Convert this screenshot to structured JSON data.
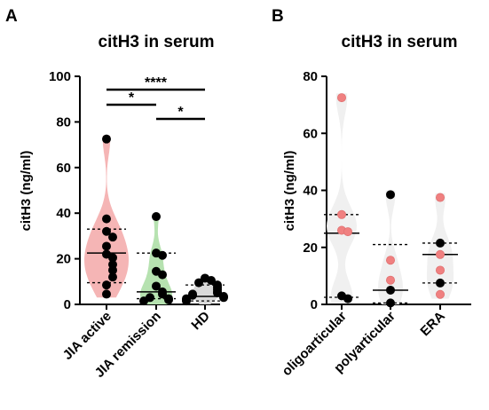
{
  "chart_data": [
    {
      "panel": "A",
      "type": "violin",
      "title": "citH3 in serum",
      "ylabel": "citH3 (ng/ml)",
      "ylim": [
        0,
        100
      ],
      "yticks": [
        0,
        20,
        40,
        60,
        80,
        100
      ],
      "categories": [
        "JIA active",
        "JIA remission",
        "HD"
      ],
      "colors": {
        "JIA active": "#f5b5b5",
        "JIA remission": "#b6e2b0",
        "HD": "#d9d9d9",
        "points": "#000000"
      },
      "series": [
        {
          "category": "JIA active",
          "median": 22.5,
          "q1": 9.5,
          "q3": 33,
          "points": [
            72.5,
            37.5,
            32,
            29.5,
            25.5,
            22,
            20.5,
            17.5,
            15,
            12,
            8.5,
            4.5
          ]
        },
        {
          "category": "JIA remission",
          "median": 5.5,
          "q1": 2.5,
          "q3": 22.5,
          "points": [
            38.5,
            22.5,
            21.5,
            14.5,
            13,
            8,
            5.5,
            4.5,
            3,
            2.5,
            2,
            1.5
          ]
        },
        {
          "category": "HD",
          "median": 3.5,
          "q1": 1.5,
          "q3": 8.5,
          "points": [
            11.5,
            10.5,
            9.5,
            8.5,
            7.5,
            6.5,
            5.5,
            5,
            4.5,
            4,
            3.5,
            3,
            2.5,
            2,
            1.5
          ]
        }
      ],
      "significance": [
        {
          "from": "JIA active",
          "to": "HD",
          "label": "****"
        },
        {
          "from": "JIA active",
          "to": "JIA remission",
          "label": "*"
        },
        {
          "from": "JIA remission",
          "to": "HD",
          "label": "*"
        }
      ]
    },
    {
      "panel": "B",
      "type": "violin",
      "title": "citH3 in serum",
      "ylabel": "citH3 (ng/ml)",
      "ylim": [
        0,
        80
      ],
      "yticks": [
        0,
        20,
        40,
        60,
        80
      ],
      "categories": [
        "oligoarticular",
        "polyarticular",
        "ERA"
      ],
      "colors": {
        "violin": "#f0f0f0",
        "active_points": "#f08080",
        "remission_points": "#000000"
      },
      "series": [
        {
          "category": "oligoarticular",
          "median": 25,
          "q1": 2.5,
          "q3": 31.5,
          "points": [
            {
              "y": 72.5,
              "group": "active"
            },
            {
              "y": 31.5,
              "group": "active"
            },
            {
              "y": 26,
              "group": "active"
            },
            {
              "y": 25.5,
              "group": "active"
            },
            {
              "y": 3,
              "group": "remission"
            },
            {
              "y": 2,
              "group": "remission"
            }
          ]
        },
        {
          "category": "polyarticular",
          "median": 5,
          "q1": 0.5,
          "q3": 21,
          "points": [
            {
              "y": 38.5,
              "group": "remission"
            },
            {
              "y": 15.5,
              "group": "active"
            },
            {
              "y": 8.5,
              "group": "active"
            },
            {
              "y": 5,
              "group": "remission"
            },
            {
              "y": 0.5,
              "group": "remission"
            }
          ]
        },
        {
          "category": "ERA",
          "median": 17.5,
          "q1": 7.5,
          "q3": 21.5,
          "points": [
            {
              "y": 37.5,
              "group": "active"
            },
            {
              "y": 21.5,
              "group": "remission"
            },
            {
              "y": 17.5,
              "group": "active"
            },
            {
              "y": 12,
              "group": "active"
            },
            {
              "y": 7.5,
              "group": "remission"
            },
            {
              "y": 3.5,
              "group": "active"
            }
          ]
        }
      ]
    }
  ]
}
